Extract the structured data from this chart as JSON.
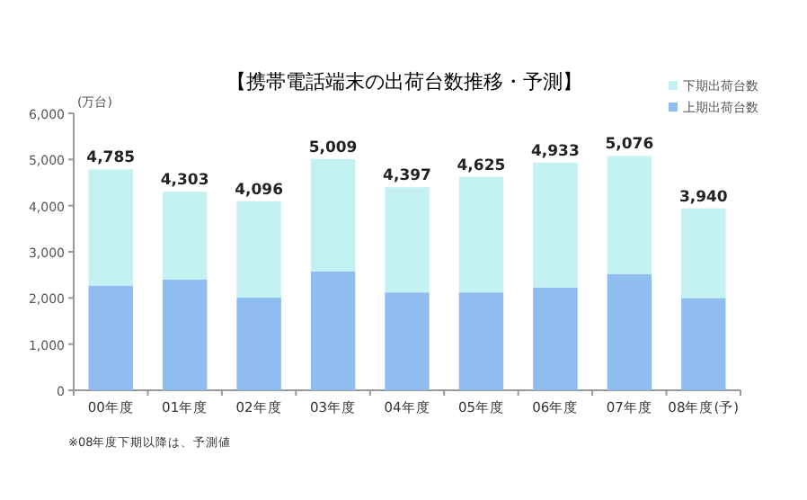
{
  "chart_data": {
    "type": "bar",
    "stacked": true,
    "title": "【携帯電話端末の出荷台数推移・予測】",
    "ylabel": "(万台)",
    "categories": [
      "00年度",
      "01年度",
      "02年度",
      "03年度",
      "04年度",
      "05年度",
      "06年度",
      "07年度",
      "08年度(予)"
    ],
    "series": [
      {
        "name": "上期出荷台数",
        "color": "#8fbdf0",
        "values": [
          2270,
          2400,
          2010,
          2580,
          2120,
          2120,
          2230,
          2520,
          2000
        ]
      },
      {
        "name": "下期出荷台数",
        "color": "#c4f1f2",
        "values": [
          2515,
          1903,
          2086,
          2429,
          2277,
          2505,
          2703,
          2556,
          1940
        ]
      }
    ],
    "totals": [
      "4,785",
      "4,303",
      "4,096",
      "5,009",
      "4,397",
      "4,625",
      "4,933",
      "5,076",
      "3,940"
    ],
    "ylim": [
      0,
      6000
    ],
    "yticks": [
      0,
      {
        "value": 1000,
        "label": "1,000"
      },
      {
        "value": 2000,
        "label": "2,000"
      },
      {
        "value": 3000,
        "label": "3,000"
      },
      {
        "value": 4000,
        "label": "4,000"
      },
      {
        "value": 5000,
        "label": "5,000"
      },
      {
        "value": 6000,
        "label": "6,000"
      }
    ],
    "legend": "top right",
    "grid": false,
    "annotations": [
      "※08年度下期以降は、予測値"
    ]
  }
}
